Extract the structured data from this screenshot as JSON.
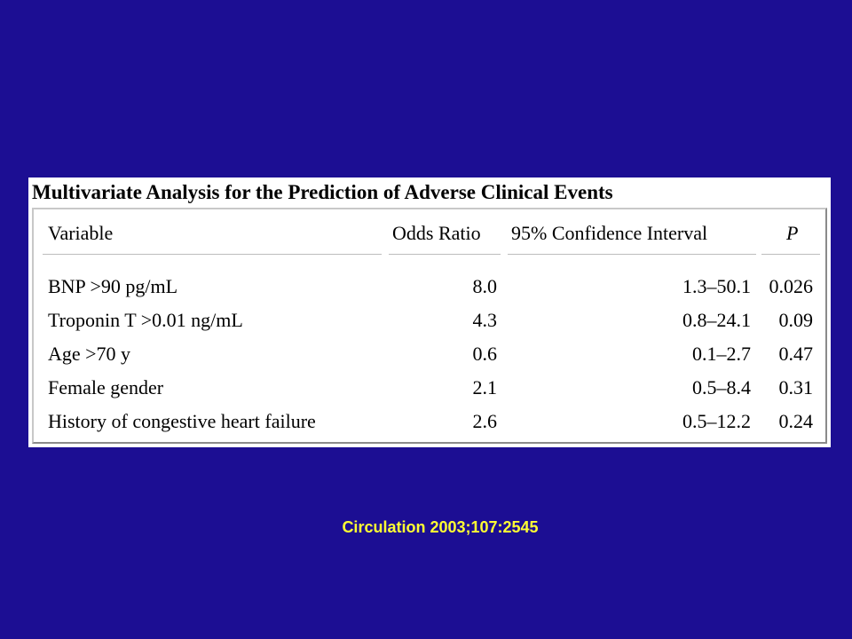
{
  "table": {
    "title": "Multivariate Analysis for the Prediction of Adverse Clinical Events",
    "headers": {
      "variable": "Variable",
      "odds_ratio": "Odds Ratio",
      "ci": "95% Confidence Interval",
      "p": "P"
    },
    "rows": [
      {
        "variable": "BNP >90 pg/mL",
        "odds_ratio": "8.0",
        "ci": "1.3–50.1",
        "p": "0.026"
      },
      {
        "variable": "Troponin T >0.01 ng/mL",
        "odds_ratio": "4.3",
        "ci": "0.8–24.1",
        "p": "0.09"
      },
      {
        "variable": "Age >70 y",
        "odds_ratio": "0.6",
        "ci": "0.1–2.7",
        "p": "0.47"
      },
      {
        "variable": "Female gender",
        "odds_ratio": "2.1",
        "ci": "0.5–8.4",
        "p": "0.31"
      },
      {
        "variable": "History of congestive heart failure",
        "odds_ratio": "2.6",
        "ci": "0.5–12.2",
        "p": "0.24"
      }
    ]
  },
  "caption": "Circulation 2003;107:2545",
  "colors": {
    "background": "#1c0e93",
    "caption": "#ffff33"
  }
}
